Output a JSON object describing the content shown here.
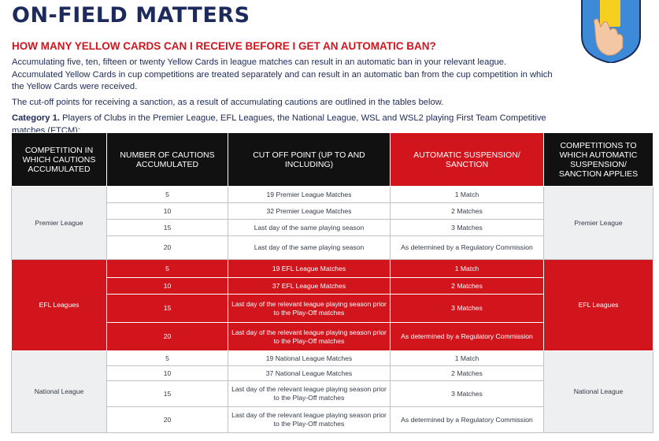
{
  "title": "ON-FIELD MATTERS",
  "question": "HOW MANY YELLOW CARDS CAN I RECEIVE BEFORE I GET AN AUTOMATIC BAN?",
  "paragraph1": "Accumulating five, ten, fifteen or twenty Yellow Cards in league matches can result in an automatic ban in your relevant league. Accumulated Yellow Cards in cup competitions are treated separately and can result in an automatic ban from the cup competition in which the Yellow Cards were received.",
  "paragraph2": "The cut-off points for receiving a sanction, as a result of accumulating cautions are outlined in the tables below.",
  "category_label": "Category 1.",
  "category_text": " Players of Clubs in the Premier League, EFL Leagues, the National League, WSL and WSL2 playing First Team Competitive matches (FTCM):",
  "colors": {
    "navy": "#1d2a5c",
    "red": "#d2141d",
    "header_black": "#111111",
    "shield_blue": "#3d8ad9",
    "card_yellow": "#f6cf1f"
  },
  "illustration": "hand-holding-yellow-card-icon",
  "table": {
    "headers": {
      "competition": "COMPETITION IN WHICH CAUTIONS ACCUMULATED",
      "cautions": "NUMBER OF CAUTIONS ACCUMULATED",
      "cutoff": "CUT OFF POINT (UP TO AND INCLUDING)",
      "suspension": "AUTOMATIC SUSPENSION/ SANCTION",
      "applies": "COMPETITIONS TO WHICH AUTOMATIC SUSPENSION/ SANCTION APPLIES"
    },
    "groups": [
      {
        "competition": "Premier League",
        "applies": "Premier League",
        "rows": [
          {
            "cautions": "5",
            "cutoff": "19 Premier League Matches",
            "sanction": "1 Match"
          },
          {
            "cautions": "10",
            "cutoff": "32 Premier League Matches",
            "sanction": "2 Matches"
          },
          {
            "cautions": "15",
            "cutoff": "Last day of the same playing season",
            "sanction": "3 Matches"
          },
          {
            "cautions": "20",
            "cutoff": "Last day of the same playing season",
            "sanction": "As determined by a Regulatory Commission"
          }
        ]
      },
      {
        "competition": "EFL Leagues",
        "applies": "EFL Leagues",
        "rows": [
          {
            "cautions": "5",
            "cutoff": "19 EFL League Matches",
            "sanction": "1 Match"
          },
          {
            "cautions": "10",
            "cutoff": "37 EFL League Matches",
            "sanction": "2 Matches"
          },
          {
            "cautions": "15",
            "cutoff": "Last day of the relevant league playing season prior to the Play-Off matches",
            "sanction": "3 Matches"
          },
          {
            "cautions": "20",
            "cutoff": "Last day of the relevant league playing season prior to the Play-Off matches",
            "sanction": "As determined by a Regulatory Commission"
          }
        ]
      },
      {
        "competition": "National League",
        "applies": "National League",
        "rows": [
          {
            "cautions": "5",
            "cutoff": "19 National League Matches",
            "sanction": "1 Match"
          },
          {
            "cautions": "10",
            "cutoff": "37 National League Matches",
            "sanction": "2 Matches"
          },
          {
            "cautions": "15",
            "cutoff": "Last day of the relevant league playing season prior to the Play-Off matches",
            "sanction": "3 Matches"
          },
          {
            "cautions": "20",
            "cutoff": "Last day of the relevant league playing season prior to the Play-Off matches",
            "sanction": "As determined by a Regulatory Commission"
          }
        ]
      }
    ]
  }
}
